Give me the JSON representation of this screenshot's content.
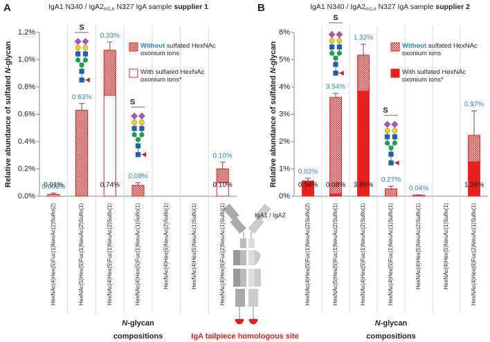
{
  "chart_data": [
    {
      "type": "bar",
      "panel_label": "A",
      "title_pre": "IgA1 N340 / IgA2",
      "title_sub": "m1,n",
      "title_mid": " N327 IgA sample ",
      "title_bold": "supplier 1",
      "ylabel_pre": "Relative abundance of sulfated ",
      "ylabel_italic": "N",
      "ylabel_post": "-glycan",
      "xlabel_italic": "N",
      "xlabel_post": "-glycan",
      "xlabel_line2": "compositions",
      "annotations": [
        "S",
        "S"
      ],
      "categories": [
        "HexNAc(4)Hex(5)Fuc(1)NeuAc(2)Sulfo(2)",
        "HexNAc(5)Hex(5)Fuc(1)NeuAc(2)Sulfo(1)",
        "HexNAc(4)Hex(5)Fuc(1)NeuAc(2)Sulfo(1)",
        "HexNAc(4)Hex(5)Fuc(1)NeuAc(1)Sulfo(1)",
        "HexNAc(4)Hex(5)NeuAc(2)Sulfo(1)",
        "HexNAc(4)Hex(5)NeuAc(1)Sulfo(1)",
        "HexNAc(4)Hex(6)Fuc(2)NeuAc(1)Sulfo(1)"
      ],
      "series": [
        {
          "name": "With sulfated HexNAc oxonium ions*",
          "color": "#e8201e",
          "fill": "outline",
          "label_color": "#111",
          "values": [
            0.01,
            0,
            0.74,
            0,
            0,
            0,
            0.1
          ],
          "value_labels": [
            "0.01%",
            null,
            "0.74%",
            null,
            null,
            null,
            "0.10%"
          ]
        },
        {
          "name_bold": "Without",
          "name": "sulfated HexNAc oxonium ions",
          "color": "#e8201e",
          "fill": "hatch",
          "label_color": "#2e86c1",
          "values": [
            0.003,
            0.63,
            0.33,
            0.08,
            0,
            0,
            0.1
          ],
          "value_labels": [
            "0.003%",
            "0.63%",
            "0.33%",
            "0.08%",
            null,
            null,
            "0.10%"
          ]
        }
      ],
      "errors": [
        0.01,
        0.05,
        0.06,
        0.02,
        0,
        0,
        0.05
      ],
      "ylim": [
        0,
        1.2
      ],
      "yticks": [
        {
          "value": 0,
          "label": "0.0%"
        },
        {
          "value": 0.2,
          "label": "0.2%"
        },
        {
          "value": 0.4,
          "label": "0.4%"
        },
        {
          "value": 0.6,
          "label": "0.6%"
        },
        {
          "value": 0.8,
          "label": "0.8%"
        },
        {
          "value": 1.0,
          "label": "1.0%"
        },
        {
          "value": 1.2,
          "label": "1.2%"
        }
      ]
    },
    {
      "type": "bar",
      "panel_label": "B",
      "title_pre": "IgA1 N340 / IgA2",
      "title_sub": "m1,n",
      "title_mid": " N327 IgA sample ",
      "title_bold": "supplier 2",
      "ylabel_pre": "Relative abundance of sulfated ",
      "ylabel_italic": "N",
      "ylabel_post": "-glycan",
      "xlabel_italic": "N",
      "xlabel_post": "-glycan",
      "xlabel_line2": "compositions",
      "annotations": [
        "S",
        "S"
      ],
      "categories": [
        "HexNAc(4)Hex(5)Fuc(1)NeuAc(2)Sulfo(2)",
        "HexNAc(5)Hex(5)Fuc(1)NeuAc(2)Sulfo(1)",
        "HexNAc(4)Hex(5)Fuc(1)NeuAc(2)Sulfo(1)",
        "HexNAc(4)Hex(5)Fuc(1)NeuAc(1)Sulfo(1)",
        "HexNAc(4)Hex(5)NeuAc(2)Sulfo(1)",
        "HexNAc(4)Hex(5)NeuAc(1)Sulfo(1)",
        "HexNAc(4)Hex(6)Fuc(2)NeuAc(1)Sulfo(1)"
      ],
      "series": [
        {
          "name": "With sulfated HexNAc oxonium ions*",
          "color": "#e8201e",
          "fill": "solid",
          "label_color": "#111",
          "values": [
            0.54,
            0.08,
            3.85,
            0,
            0,
            0,
            1.26
          ],
          "value_labels": [
            "0.54%",
            "0.08%",
            "3.85%",
            null,
            null,
            null,
            "1.26%"
          ]
        },
        {
          "name_bold": "Without",
          "name": "sulfated HexNAc oxonium ions",
          "color": "#e8201e",
          "fill": "hatch",
          "label_color": "#2e86c1",
          "values": [
            0.02,
            3.54,
            1.32,
            0.27,
            0.04,
            0,
            0.97
          ],
          "value_labels": [
            "0.02%",
            "3.54%",
            "1.32%",
            "0.27%",
            "0.04%",
            null,
            "0.97%"
          ]
        }
      ],
      "errors": [
        0.1,
        0.15,
        0.4,
        0.1,
        0.01,
        0,
        0.9
      ],
      "ylim": [
        0,
        6
      ],
      "yticks": [
        {
          "value": 0,
          "label": "0%"
        },
        {
          "value": 1,
          "label": "1%"
        },
        {
          "value": 2,
          "label": "2%"
        },
        {
          "value": 3,
          "label": "3%"
        },
        {
          "value": 4,
          "label": "4%"
        },
        {
          "value": 5,
          "label": "5%"
        },
        {
          "value": 6,
          "label": "6%"
        }
      ]
    }
  ],
  "figure": {
    "diagram_label": "IgA1 / IgA2",
    "site_label": "IgA tailpiece homologous site"
  }
}
